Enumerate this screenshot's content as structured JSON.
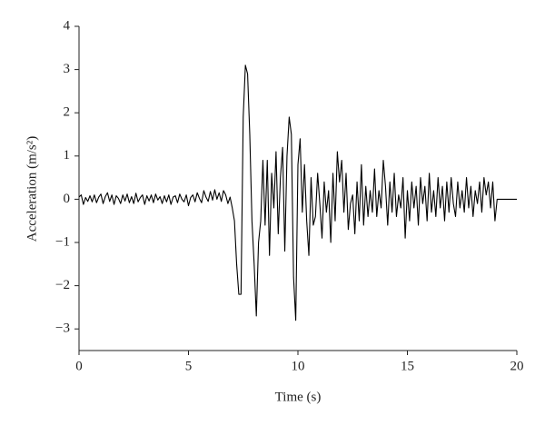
{
  "chart_data": {
    "type": "line",
    "xlabel": "Time (s)",
    "ylabel": "Acceleration (m/s²)",
    "color": "#000000",
    "xlim": [
      0,
      20
    ],
    "ylim": [
      -3.5,
      4
    ],
    "xticks": [
      0,
      5,
      10,
      15,
      20
    ],
    "yticks": [
      {
        "value": -3,
        "label": "−3"
      },
      {
        "value": -2,
        "label": "−2"
      },
      {
        "value": -1,
        "label": "−1"
      },
      0,
      1,
      2,
      3,
      4
    ],
    "x": [
      0,
      0.1,
      0.2,
      0.3,
      0.4,
      0.5,
      0.6,
      0.7,
      0.8,
      0.9,
      1,
      1.1,
      1.2,
      1.3,
      1.4,
      1.5,
      1.6,
      1.7,
      1.8,
      1.9,
      2,
      2.1,
      2.2,
      2.3,
      2.4,
      2.5,
      2.6,
      2.7,
      2.8,
      2.9,
      3,
      3.1,
      3.2,
      3.3,
      3.4,
      3.5,
      3.6,
      3.7,
      3.8,
      3.9,
      4,
      4.1,
      4.2,
      4.3,
      4.4,
      4.5,
      4.6,
      4.7,
      4.8,
      4.9,
      5,
      5.1,
      5.2,
      5.3,
      5.4,
      5.5,
      5.6,
      5.7,
      5.8,
      5.9,
      6,
      6.1,
      6.2,
      6.3,
      6.4,
      6.5,
      6.6,
      6.7,
      6.8,
      6.9,
      7,
      7.1,
      7.2,
      7.3,
      7.4,
      7.5,
      7.6,
      7.7,
      7.8,
      7.9,
      8,
      8.1,
      8.2,
      8.3,
      8.4,
      8.5,
      8.6,
      8.7,
      8.8,
      8.9,
      9,
      9.1,
      9.2,
      9.3,
      9.4,
      9.5,
      9.6,
      9.7,
      9.8,
      9.9,
      10,
      10.1,
      10.2,
      10.3,
      10.4,
      10.5,
      10.6,
      10.7,
      10.8,
      10.9,
      11,
      11.1,
      11.2,
      11.3,
      11.4,
      11.5,
      11.6,
      11.7,
      11.8,
      11.9,
      12,
      12.1,
      12.2,
      12.3,
      12.4,
      12.5,
      12.6,
      12.7,
      12.8,
      12.9,
      13,
      13.1,
      13.2,
      13.3,
      13.4,
      13.5,
      13.6,
      13.7,
      13.8,
      13.9,
      14,
      14.1,
      14.2,
      14.3,
      14.4,
      14.5,
      14.6,
      14.7,
      14.8,
      14.9,
      15,
      15.1,
      15.2,
      15.3,
      15.4,
      15.5,
      15.6,
      15.7,
      15.8,
      15.9,
      16,
      16.1,
      16.2,
      16.3,
      16.4,
      16.5,
      16.6,
      16.7,
      16.8,
      16.9,
      17,
      17.1,
      17.2,
      17.3,
      17.4,
      17.5,
      17.6,
      17.7,
      17.8,
      17.9,
      18,
      18.1,
      18.2,
      18.3,
      18.4,
      18.5,
      18.6,
      18.7,
      18.8,
      18.9,
      19,
      19.1,
      19.2,
      19.3,
      19.4,
      19.5,
      19.6,
      19.7,
      19.8,
      19.9,
      20
    ],
    "values": [
      0.05,
      0.1,
      -0.12,
      0.04,
      -0.05,
      0.08,
      -0.06,
      0.1,
      -0.08,
      0.05,
      0.12,
      -0.1,
      0.06,
      0.15,
      -0.05,
      0.1,
      -0.12,
      0.08,
      0.02,
      -0.1,
      0.1,
      -0.04,
      0.12,
      -0.08,
      0.06,
      -0.1,
      0.14,
      -0.06,
      0.04,
      0.1,
      -0.12,
      0.08,
      -0.04,
      0.1,
      -0.08,
      0.12,
      -0.02,
      0.06,
      -0.1,
      0.08,
      -0.06,
      0.1,
      -0.12,
      0.05,
      0.08,
      -0.08,
      0.12,
      0.0,
      -0.06,
      0.1,
      -0.15,
      0.04,
      0.1,
      -0.06,
      0.15,
      0.02,
      -0.08,
      0.2,
      0.05,
      -0.05,
      0.18,
      -0.02,
      0.22,
      0.0,
      0.15,
      -0.05,
      0.2,
      0.1,
      -0.1,
      0.05,
      -0.2,
      -0.5,
      -1.5,
      -2.2,
      -2.2,
      1.9,
      3.1,
      2.9,
      1.5,
      -0.5,
      -1.5,
      -2.7,
      -1.0,
      -0.5,
      0.9,
      -0.6,
      0.9,
      -1.3,
      0.6,
      -0.2,
      1.1,
      -0.8,
      0.5,
      1.2,
      -1.2,
      1.0,
      1.9,
      1.5,
      -1.8,
      -2.8,
      0.8,
      1.4,
      -0.3,
      0.8,
      -0.5,
      -1.3,
      0.5,
      -0.6,
      -0.4,
      0.6,
      -0.1,
      -0.9,
      0.4,
      -0.3,
      0.2,
      -1.0,
      0.6,
      -0.5,
      1.1,
      0.4,
      0.9,
      -0.3,
      0.6,
      -0.7,
      -0.1,
      0.1,
      -0.8,
      0.4,
      -0.5,
      0.8,
      -0.6,
      0.3,
      -0.4,
      0.2,
      -0.3,
      0.7,
      -0.4,
      0.2,
      -0.2,
      0.9,
      0.3,
      -0.6,
      0.4,
      -0.3,
      0.6,
      -0.4,
      0.1,
      -0.2,
      0.5,
      -0.9,
      0.2,
      -0.5,
      0.4,
      -0.2,
      0.3,
      -0.6,
      0.5,
      -0.1,
      0.3,
      -0.5,
      0.6,
      -0.3,
      0.2,
      -0.4,
      0.5,
      -0.2,
      0.3,
      -0.5,
      0.4,
      -0.3,
      0.5,
      -0.1,
      -0.4,
      0.4,
      -0.2,
      0.2,
      -0.3,
      0.5,
      -0.2,
      0.3,
      -0.4,
      0.2,
      -0.1,
      0.4,
      -0.3,
      0.5,
      0.1,
      0.4,
      -0.2,
      0.4,
      -0.5,
      0,
      0,
      0,
      0,
      0,
      0,
      0,
      0,
      0,
      0
    ]
  }
}
